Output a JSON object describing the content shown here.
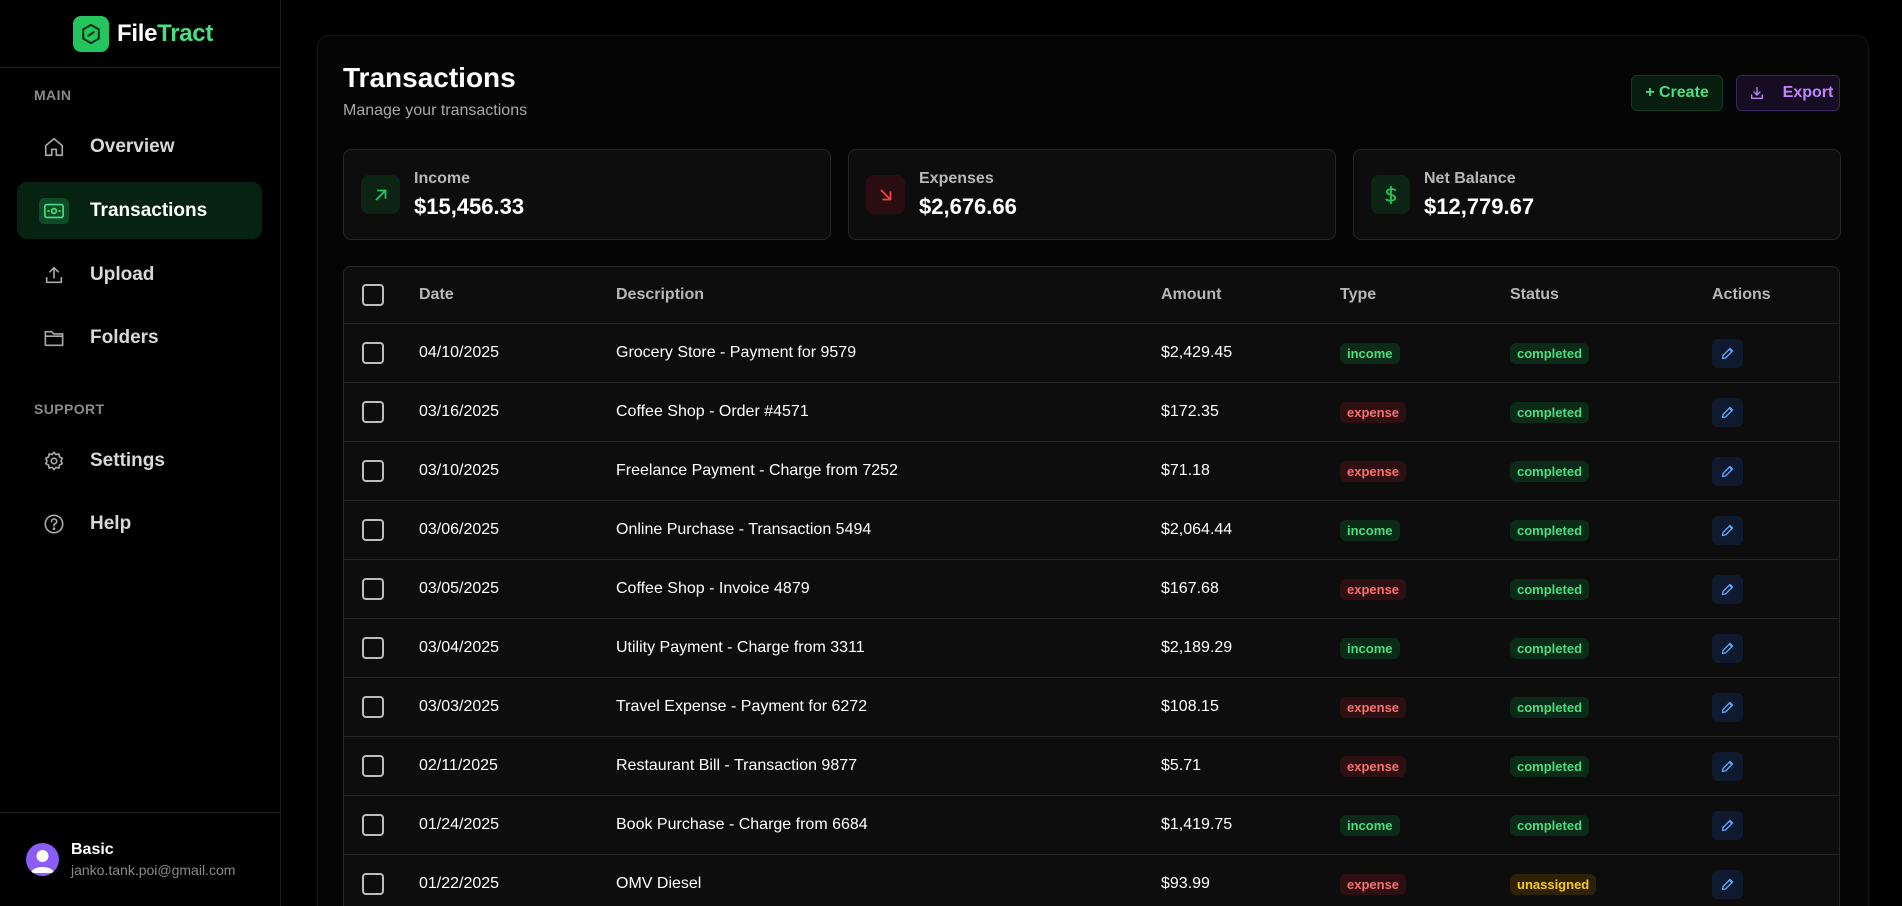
{
  "brand": {
    "name_part1": "File",
    "name_part2": "Tract"
  },
  "sidebar": {
    "sections": [
      {
        "label": "MAIN"
      },
      {
        "label": "SUPPORT"
      }
    ],
    "items": [
      {
        "label": "Overview",
        "icon": "home-icon"
      },
      {
        "label": "Transactions",
        "icon": "banknote-icon",
        "active": true
      },
      {
        "label": "Upload",
        "icon": "upload-icon"
      },
      {
        "label": "Folders",
        "icon": "folder-icon"
      },
      {
        "label": "Settings",
        "icon": "gear-icon"
      },
      {
        "label": "Help",
        "icon": "help-circle-icon"
      }
    ],
    "user": {
      "plan": "Basic",
      "email": "janko.tank.poi@gmail.com"
    }
  },
  "header": {
    "title": "Transactions",
    "subtitle": "Manage your transactions",
    "create_label": "+ Create",
    "export_label": "Export"
  },
  "stats": [
    {
      "label": "Income",
      "value": "$15,456.33",
      "icon": "arrow-up-right-icon",
      "color": "#22c55e"
    },
    {
      "label": "Expenses",
      "value": "$2,676.66",
      "icon": "arrow-down-right-icon",
      "color": "#ef4444"
    },
    {
      "label": "Net Balance",
      "value": "$12,779.67",
      "icon": "dollar-icon",
      "color": "#22c55e"
    }
  ],
  "table": {
    "columns": [
      "Date",
      "Description",
      "Amount",
      "Type",
      "Status",
      "Actions"
    ],
    "rows": [
      {
        "date": "04/10/2025",
        "description": "Grocery Store - Payment for 9579",
        "amount": "$2,429.45",
        "type": "income",
        "status": "completed"
      },
      {
        "date": "03/16/2025",
        "description": "Coffee Shop - Order #4571",
        "amount": "$172.35",
        "type": "expense",
        "status": "completed"
      },
      {
        "date": "03/10/2025",
        "description": "Freelance Payment - Charge from 7252",
        "amount": "$71.18",
        "type": "expense",
        "status": "completed"
      },
      {
        "date": "03/06/2025",
        "description": "Online Purchase - Transaction 5494",
        "amount": "$2,064.44",
        "type": "income",
        "status": "completed"
      },
      {
        "date": "03/05/2025",
        "description": "Coffee Shop - Invoice 4879",
        "amount": "$167.68",
        "type": "expense",
        "status": "completed"
      },
      {
        "date": "03/04/2025",
        "description": "Utility Payment - Charge from 3311",
        "amount": "$2,189.29",
        "type": "income",
        "status": "completed"
      },
      {
        "date": "03/03/2025",
        "description": "Travel Expense - Payment for 6272",
        "amount": "$108.15",
        "type": "expense",
        "status": "completed"
      },
      {
        "date": "02/11/2025",
        "description": "Restaurant Bill - Transaction 9877",
        "amount": "$5.71",
        "type": "expense",
        "status": "completed"
      },
      {
        "date": "01/24/2025",
        "description": "Book Purchase - Charge from 6684",
        "amount": "$1,419.75",
        "type": "income",
        "status": "completed"
      },
      {
        "date": "01/22/2025",
        "description": "OMV Diesel",
        "amount": "$93.99",
        "type": "expense",
        "status": "unassigned"
      }
    ]
  }
}
